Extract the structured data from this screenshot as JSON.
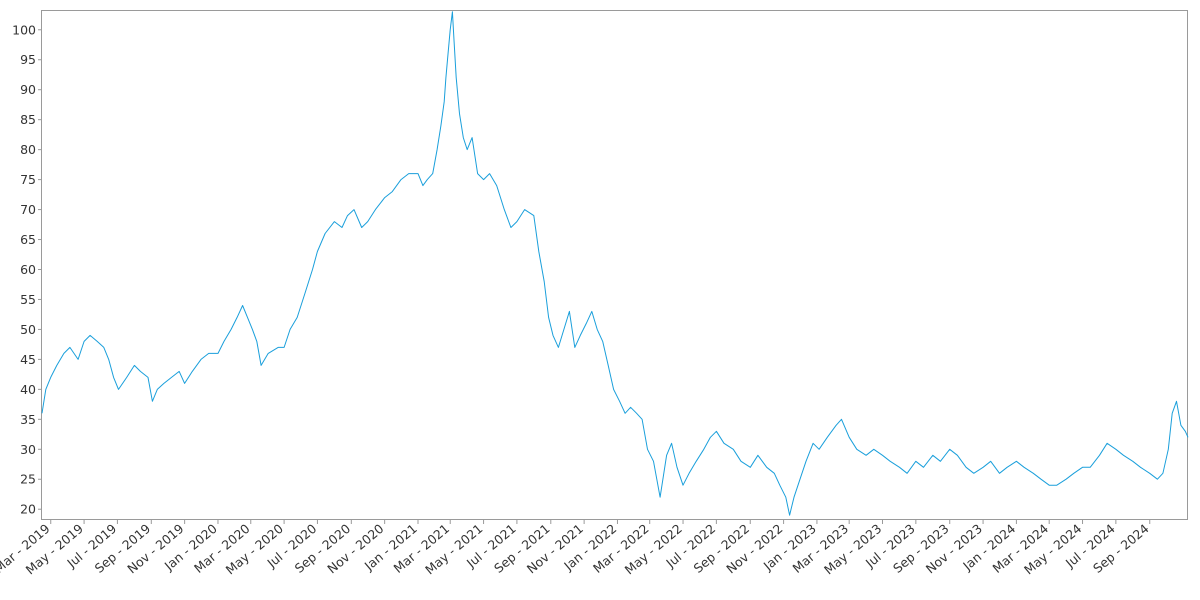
{
  "chart_data": {
    "type": "line",
    "title": "",
    "xlabel": "",
    "ylabel": "",
    "grid": false,
    "legend": "none",
    "color": "#1a9fdb",
    "xlim": [
      "2019-02-13",
      "2024-11-10"
    ],
    "ylim": [
      18.2,
      103.3
    ],
    "y_ticks": [
      20,
      25,
      30,
      35,
      40,
      45,
      50,
      55,
      60,
      65,
      70,
      75,
      80,
      85,
      90,
      95,
      100
    ],
    "x_ticks": [
      {
        "date": "2019-03-01",
        "label": "Mar - 2019"
      },
      {
        "date": "2019-05-01",
        "label": "May - 2019"
      },
      {
        "date": "2019-07-01",
        "label": "Jul - 2019"
      },
      {
        "date": "2019-09-01",
        "label": "Sep - 2019"
      },
      {
        "date": "2019-11-01",
        "label": "Nov - 2019"
      },
      {
        "date": "2020-01-01",
        "label": "Jan - 2020"
      },
      {
        "date": "2020-03-01",
        "label": "Mar - 2020"
      },
      {
        "date": "2020-05-01",
        "label": "May - 2020"
      },
      {
        "date": "2020-07-01",
        "label": "Jul - 2020"
      },
      {
        "date": "2020-09-01",
        "label": "Sep - 2020"
      },
      {
        "date": "2020-11-01",
        "label": "Nov - 2020"
      },
      {
        "date": "2021-01-01",
        "label": "Jan - 2021"
      },
      {
        "date": "2021-03-01",
        "label": "Mar - 2021"
      },
      {
        "date": "2021-05-01",
        "label": "May - 2021"
      },
      {
        "date": "2021-07-01",
        "label": "Jul - 2021"
      },
      {
        "date": "2021-09-01",
        "label": "Sep - 2021"
      },
      {
        "date": "2021-11-01",
        "label": "Nov - 2021"
      },
      {
        "date": "2022-01-01",
        "label": "Jan - 2022"
      },
      {
        "date": "2022-03-01",
        "label": "Mar - 2022"
      },
      {
        "date": "2022-05-01",
        "label": "May - 2022"
      },
      {
        "date": "2022-07-01",
        "label": "Jul - 2022"
      },
      {
        "date": "2022-09-01",
        "label": "Sep - 2022"
      },
      {
        "date": "2022-11-01",
        "label": "Nov - 2022"
      },
      {
        "date": "2023-01-01",
        "label": "Jan - 2023"
      },
      {
        "date": "2023-03-01",
        "label": "Mar - 2023"
      },
      {
        "date": "2023-05-01",
        "label": "May - 2023"
      },
      {
        "date": "2023-07-01",
        "label": "Jul - 2023"
      },
      {
        "date": "2023-09-01",
        "label": "Sep - 2023"
      },
      {
        "date": "2023-11-01",
        "label": "Nov - 2023"
      },
      {
        "date": "2024-01-01",
        "label": "Jan - 2024"
      },
      {
        "date": "2024-03-01",
        "label": "Mar - 2024"
      },
      {
        "date": "2024-05-01",
        "label": "May - 2024"
      },
      {
        "date": "2024-07-01",
        "label": "Jul - 2024"
      },
      {
        "date": "2024-09-01",
        "label": "Sep - 2024"
      }
    ],
    "series": [
      {
        "x": [
          "2019-02-13",
          "2019-02-20",
          "2019-03-01",
          "2019-03-12",
          "2019-03-25",
          "2019-04-05",
          "2019-04-20",
          "2019-05-01",
          "2019-05-12",
          "2019-05-25",
          "2019-06-06",
          "2019-06-15",
          "2019-06-24",
          "2019-07-03",
          "2019-07-18",
          "2019-08-01",
          "2019-08-12",
          "2019-08-26",
          "2019-09-03",
          "2019-09-12",
          "2019-09-24",
          "2019-10-08",
          "2019-10-22",
          "2019-11-01",
          "2019-11-15",
          "2019-12-01",
          "2019-12-15",
          "2020-01-01",
          "2020-01-12",
          "2020-01-25",
          "2020-02-05",
          "2020-02-15",
          "2020-02-24",
          "2020-03-04",
          "2020-03-12",
          "2020-03-20",
          "2020-04-02",
          "2020-04-20",
          "2020-05-01",
          "2020-05-12",
          "2020-05-25",
          "2020-06-08",
          "2020-06-22",
          "2020-07-01",
          "2020-07-15",
          "2020-08-01",
          "2020-08-15",
          "2020-08-25",
          "2020-09-06",
          "2020-09-20",
          "2020-10-01",
          "2020-10-15",
          "2020-11-01",
          "2020-11-15",
          "2020-12-01",
          "2020-12-15",
          "2021-01-01",
          "2021-01-10",
          "2021-01-18",
          "2021-01-28",
          "2021-02-05",
          "2021-02-12",
          "2021-02-18",
          "2021-02-21",
          "2021-02-24",
          "2021-03-01",
          "2021-03-05",
          "2021-03-08",
          "2021-03-12",
          "2021-03-18",
          "2021-03-25",
          "2021-04-01",
          "2021-04-10",
          "2021-04-20",
          "2021-05-01",
          "2021-05-12",
          "2021-05-25",
          "2021-06-08",
          "2021-06-20",
          "2021-07-01",
          "2021-07-15",
          "2021-08-01",
          "2021-08-10",
          "2021-08-20",
          "2021-08-28",
          "2021-09-05",
          "2021-09-15",
          "2021-09-25",
          "2021-10-05",
          "2021-10-15",
          "2021-10-25",
          "2021-11-05",
          "2021-11-15",
          "2021-11-25",
          "2021-12-05",
          "2021-12-15",
          "2021-12-25",
          "2022-01-05",
          "2022-01-15",
          "2022-01-25",
          "2022-02-05",
          "2022-02-15",
          "2022-02-25",
          "2022-03-08",
          "2022-03-20",
          "2022-04-01",
          "2022-04-10",
          "2022-04-20",
          "2022-05-01",
          "2022-05-12",
          "2022-05-25",
          "2022-06-08",
          "2022-06-20",
          "2022-07-01",
          "2022-07-15",
          "2022-08-01",
          "2022-08-15",
          "2022-09-01",
          "2022-09-15",
          "2022-10-01",
          "2022-10-15",
          "2022-10-25",
          "2022-11-05",
          "2022-11-12",
          "2022-11-20",
          "2022-12-01",
          "2022-12-12",
          "2022-12-25",
          "2023-01-05",
          "2023-01-20",
          "2023-02-05",
          "2023-02-15",
          "2023-03-01",
          "2023-03-15",
          "2023-04-01",
          "2023-04-15",
          "2023-05-01",
          "2023-05-15",
          "2023-06-01",
          "2023-06-15",
          "2023-07-01",
          "2023-07-15",
          "2023-08-01",
          "2023-08-15",
          "2023-09-01",
          "2023-09-15",
          "2023-10-01",
          "2023-10-15",
          "2023-11-01",
          "2023-11-15",
          "2023-12-01",
          "2023-12-15",
          "2024-01-01",
          "2024-01-15",
          "2024-02-01",
          "2024-02-15",
          "2024-03-01",
          "2024-03-15",
          "2024-04-01",
          "2024-04-15",
          "2024-05-01",
          "2024-05-15",
          "2024-06-01",
          "2024-06-15",
          "2024-07-01",
          "2024-07-15",
          "2024-08-01",
          "2024-08-15",
          "2024-09-01",
          "2024-09-15",
          "2024-09-25",
          "2024-10-05",
          "2024-10-12",
          "2024-10-20",
          "2024-10-28",
          "2024-11-05",
          "2024-11-10"
        ],
        "y": [
          36,
          40,
          42,
          44,
          46,
          47,
          45,
          48,
          49,
          48,
          47,
          45,
          42,
          40,
          42,
          44,
          43,
          42,
          38,
          40,
          41,
          42,
          43,
          41,
          43,
          45,
          46,
          46,
          48,
          50,
          52,
          54,
          52,
          50,
          48,
          44,
          46,
          47,
          47,
          50,
          52,
          56,
          60,
          63,
          66,
          68,
          67,
          69,
          70,
          67,
          68,
          70,
          72,
          73,
          75,
          76,
          76,
          74,
          75,
          76,
          80,
          84,
          88,
          92,
          95,
          100,
          103,
          98,
          92,
          86,
          82,
          80,
          82,
          76,
          75,
          76,
          74,
          70,
          67,
          68,
          70,
          69,
          63,
          58,
          52,
          49,
          47,
          50,
          53,
          47,
          49,
          51,
          53,
          50,
          48,
          44,
          40,
          38,
          36,
          37,
          36,
          35,
          30,
          28,
          22,
          29,
          31,
          27,
          24,
          26,
          28,
          30,
          32,
          33,
          31,
          30,
          28,
          27,
          29,
          27,
          26,
          24,
          22,
          19,
          22,
          25,
          28,
          31,
          30,
          32,
          34,
          35,
          32,
          30,
          29,
          30,
          29,
          28,
          27,
          26,
          28,
          27,
          29,
          28,
          30,
          29,
          27,
          26,
          27,
          28,
          26,
          27,
          28,
          27,
          26,
          25,
          24,
          24,
          25,
          26,
          27,
          27,
          29,
          31,
          30,
          29,
          28,
          27,
          26,
          25,
          26,
          30,
          36,
          38,
          34,
          33,
          32
        ]
      }
    ]
  }
}
